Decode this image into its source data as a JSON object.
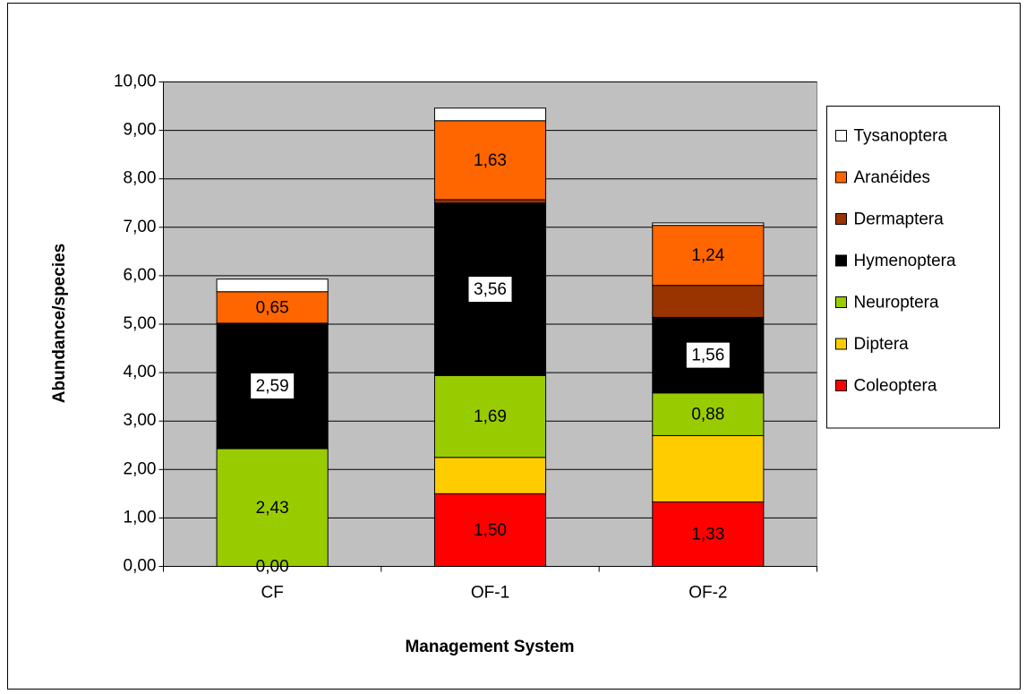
{
  "chart_data": {
    "type": "stacked_bar",
    "x_label": "Management System",
    "y_label": "Abundance/species",
    "categories": [
      "CF",
      "OF-1",
      "OF-2"
    ],
    "series": [
      {
        "name": "Coleoptera",
        "color": "#ff0000",
        "values": [
          0,
          1.5,
          1.33
        ],
        "value_labels": [
          "0,00",
          "1,50",
          "1,33"
        ]
      },
      {
        "name": "Diptera",
        "color": "#ffcc00",
        "values": [
          0,
          0.75,
          1.37
        ]
      },
      {
        "name": "Neuroptera",
        "color": "#99cc00",
        "values": [
          2.43,
          1.69,
          0.88
        ],
        "value_labels": [
          "2,43",
          "1,69",
          "0,88"
        ]
      },
      {
        "name": "Hymenoptera",
        "color": "#000000",
        "values": [
          2.59,
          3.56,
          1.56
        ],
        "value_labels": [
          "2,59",
          "3,56",
          "1,56"
        ]
      },
      {
        "name": "Dermaptera",
        "color": "#993300",
        "values": [
          0,
          0.07,
          0.66
        ]
      },
      {
        "name": "Aranéides",
        "color": "#ff6600",
        "values": [
          0.65,
          1.63,
          1.24
        ],
        "value_labels": [
          "0,65",
          "1,63",
          "1,24"
        ]
      },
      {
        "name": "Tysanoptera",
        "color": "#ffffff",
        "values": [
          0.26,
          0.26,
          0.05
        ]
      }
    ],
    "ylim": [
      0,
      10
    ],
    "yticks": [
      {
        "value": 0,
        "label": "0,00"
      },
      {
        "value": 1,
        "label": "1,00"
      },
      {
        "value": 2,
        "label": "2,00"
      },
      {
        "value": 3,
        "label": "3,00"
      },
      {
        "value": 4,
        "label": "4,00"
      },
      {
        "value": 5,
        "label": "5,00"
      },
      {
        "value": 6,
        "label": "6,00"
      },
      {
        "value": 7,
        "label": "7,00"
      },
      {
        "value": 8,
        "label": "8,00"
      },
      {
        "value": 9,
        "label": "9,00"
      },
      {
        "value": 10,
        "label": "10,00"
      }
    ],
    "grid": true,
    "legend": "right"
  }
}
